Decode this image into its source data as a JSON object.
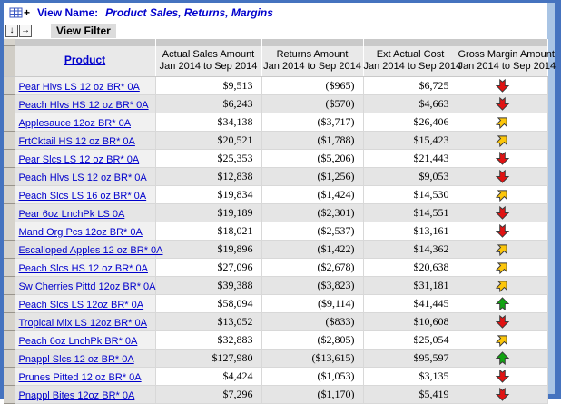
{
  "window": {
    "title_label": "View Name:",
    "title_value": "Product Sales, Returns, Margins",
    "filter_button_label": "View Filter",
    "plus_glyph": "+",
    "move_down_glyph": "↓",
    "move_right_glyph": "→"
  },
  "colors": {
    "window_border": "#4573bf",
    "window_border_light": "#a9c4e4",
    "link_blue": "#0000cc",
    "row_alt_gray": "#e5e5e5",
    "header_gray": "#e9e9e9",
    "arrow_down_red": "#e01313",
    "arrow_flat_yellow": "#fcc60a",
    "arrow_up_green": "#12a312",
    "arrow_outline": "#3a3a3a"
  },
  "table": {
    "columns": [
      {
        "line1": "Product",
        "line2": ""
      },
      {
        "line1": "Actual Sales Amount",
        "line2": "Jan 2014 to Sep 2014"
      },
      {
        "line1": "Returns Amount",
        "line2": "Jan 2014 to Sep 2014"
      },
      {
        "line1": "Ext Actual Cost",
        "line2": "Jan 2014 to Sep 2014"
      },
      {
        "line1": "Gross Margin Amount",
        "line2": "Jan 2014 to Sep 2014"
      }
    ],
    "rows": [
      {
        "product": "Pear Hlvs LS 12 oz BR* 0A",
        "sales": "$9,513",
        "returns": "($965)",
        "cost": "$6,725",
        "trend": "down"
      },
      {
        "product": "Peach Hlvs HS 12 oz BR* 0A",
        "sales": "$6,243",
        "returns": "($570)",
        "cost": "$4,663",
        "trend": "down"
      },
      {
        "product": "Applesauce 12oz BR* 0A",
        "sales": "$34,138",
        "returns": "($3,717)",
        "cost": "$26,406",
        "trend": "flat"
      },
      {
        "product": "FrtCktail HS 12 oz BR* 0A",
        "sales": "$20,521",
        "returns": "($1,788)",
        "cost": "$15,423",
        "trend": "flat"
      },
      {
        "product": "Pear Slcs LS 12 oz BR* 0A",
        "sales": "$25,353",
        "returns": "($5,206)",
        "cost": "$21,443",
        "trend": "down"
      },
      {
        "product": "Peach Hlvs LS 12 oz BR* 0A",
        "sales": "$12,838",
        "returns": "($1,256)",
        "cost": "$9,053",
        "trend": "down"
      },
      {
        "product": "Peach Slcs LS 16 oz BR* 0A",
        "sales": "$19,834",
        "returns": "($1,424)",
        "cost": "$14,530",
        "trend": "flat"
      },
      {
        "product": "Pear 6oz LnchPk LS 0A",
        "sales": "$19,189",
        "returns": "($2,301)",
        "cost": "$14,551",
        "trend": "down"
      },
      {
        "product": "Mand Org Pcs 12oz BR* 0A",
        "sales": "$18,021",
        "returns": "($2,537)",
        "cost": "$13,161",
        "trend": "down"
      },
      {
        "product": "Escalloped Apples 12 oz BR* 0A",
        "sales": "$19,896",
        "returns": "($1,422)",
        "cost": "$14,362",
        "trend": "flat"
      },
      {
        "product": "Peach Slcs HS 12 oz BR* 0A",
        "sales": "$27,096",
        "returns": "($2,678)",
        "cost": "$20,638",
        "trend": "flat"
      },
      {
        "product": "Sw Cherries Pittd 12oz BR* 0A",
        "sales": "$39,388",
        "returns": "($3,823)",
        "cost": "$31,181",
        "trend": "flat"
      },
      {
        "product": "Peach Slcs LS 12oz BR* 0A",
        "sales": "$58,094",
        "returns": "($9,114)",
        "cost": "$41,445",
        "trend": "up"
      },
      {
        "product": "Tropical Mix LS 12oz BR* 0A",
        "sales": "$13,052",
        "returns": "($833)",
        "cost": "$10,608",
        "trend": "down"
      },
      {
        "product": "Peach 6oz LnchPk BR* 0A",
        "sales": "$32,883",
        "returns": "($2,805)",
        "cost": "$25,054",
        "trend": "flat"
      },
      {
        "product": "Pnappl Slcs 12 oz BR* 0A",
        "sales": "$127,980",
        "returns": "($13,615)",
        "cost": "$95,597",
        "trend": "up"
      },
      {
        "product": "Prunes Pitted 12 oz BR* 0A",
        "sales": "$4,424",
        "returns": "($1,053)",
        "cost": "$3,135",
        "trend": "down"
      },
      {
        "product": "Pnappl Bites 12oz BR* 0A",
        "sales": "$7,296",
        "returns": "($1,170)",
        "cost": "$5,419",
        "trend": "down"
      }
    ]
  }
}
